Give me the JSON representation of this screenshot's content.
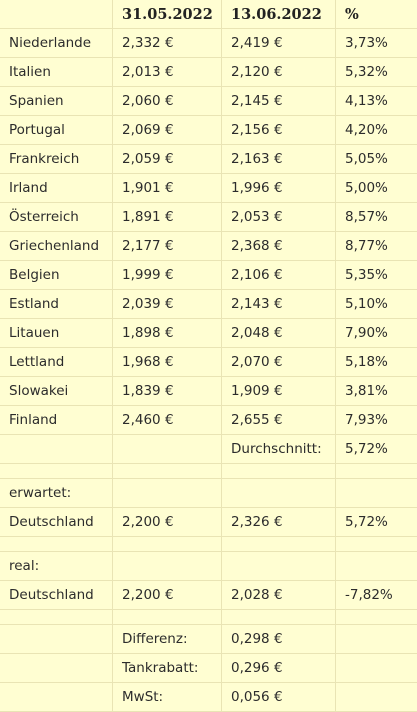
{
  "table": {
    "headers": [
      "",
      "31.05.2022",
      "13.06.2022",
      "%"
    ],
    "rows": [
      {
        "label": "Niederlande",
        "v1": "2,332 €",
        "v2": "2,419 €",
        "pct": "3,73%"
      },
      {
        "label": "Italien",
        "v1": "2,013 €",
        "v2": "2,120 €",
        "pct": "5,32%"
      },
      {
        "label": "Spanien",
        "v1": "2,060 €",
        "v2": "2,145 €",
        "pct": "4,13%"
      },
      {
        "label": "Portugal",
        "v1": "2,069 €",
        "v2": "2,156 €",
        "pct": "4,20%"
      },
      {
        "label": "Frankreich",
        "v1": "2,059 €",
        "v2": "2,163 €",
        "pct": "5,05%"
      },
      {
        "label": "Irland",
        "v1": "1,901 €",
        "v2": "1,996 €",
        "pct": "5,00%"
      },
      {
        "label": "Österreich",
        "v1": "1,891 €",
        "v2": "2,053 €",
        "pct": "8,57%"
      },
      {
        "label": "Griechenland",
        "v1": "2,177 €",
        "v2": "2,368 €",
        "pct": "8,77%"
      },
      {
        "label": "Belgien",
        "v1": "1,999 €",
        "v2": "2,106 €",
        "pct": "5,35%"
      },
      {
        "label": "Estland",
        "v1": "2,039 €",
        "v2": "2,143 €",
        "pct": "5,10%"
      },
      {
        "label": "Litauen",
        "v1": "1,898 €",
        "v2": "2,048 €",
        "pct": "7,90%"
      },
      {
        "label": "Lettland",
        "v1": "1,968 €",
        "v2": "2,070 €",
        "pct": "5,18%"
      },
      {
        "label": "Slowakei",
        "v1": "1,839 €",
        "v2": "1,909 €",
        "pct": "3,81%"
      },
      {
        "label": "Finland",
        "v1": "2,460 €",
        "v2": "2,655 €",
        "pct": "7,93%"
      }
    ],
    "average": {
      "label": "Durchschnitt:",
      "value": "5,72%"
    },
    "expected": {
      "section_label": "erwartet:",
      "row": {
        "label": "Deutschland",
        "v1": "2,200 €",
        "v2": "2,326 €",
        "pct": "5,72%"
      }
    },
    "real": {
      "section_label": "real:",
      "row": {
        "label": "Deutschland",
        "v1": "2,200 €",
        "v2": "2,028 €",
        "pct": "-7,82%"
      }
    },
    "summary": [
      {
        "label": "Differenz:",
        "value": "0,298 €"
      },
      {
        "label": "Tankrabatt:",
        "value": "0,296 €"
      },
      {
        "label": "MwSt:",
        "value": "0,056 €"
      }
    ]
  }
}
